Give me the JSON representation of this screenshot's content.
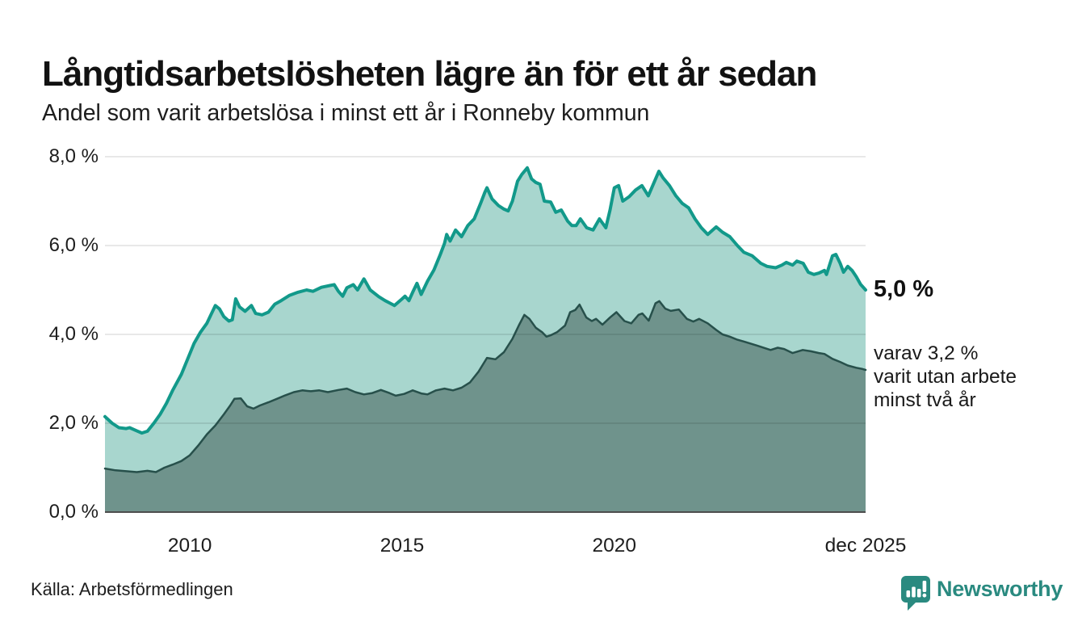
{
  "header": {
    "title": "Långtidsarbetslösheten lägre än för ett år sedan",
    "subtitle": "Andel som varit arbetslösa i minst ett år i Ronneby kommun"
  },
  "annotations": {
    "latest_total": "5,0 %",
    "two_year_note": "varav 3,2 %\nvarit utan arbete\nminst två år"
  },
  "source": {
    "label": "Källa: Arbetsförmedlingen"
  },
  "branding": {
    "name": "Newsworthy",
    "color": "#2a8a80"
  },
  "chart_data": {
    "type": "area",
    "title": "Långtidsarbetslösheten lägre än för ett år sedan",
    "subtitle": "Andel som varit arbetslösa i minst ett år i Ronneby kommun",
    "x_domain": [
      2008,
      2025.92
    ],
    "ylim": [
      0,
      8
    ],
    "grid": true,
    "grid_color": "rgba(0,0,0,0.12)",
    "baseline_color": "#4d4d4d",
    "y_ticks": [
      {
        "value": 8,
        "label": "8,0 %"
      },
      {
        "value": 6,
        "label": "6,0 %"
      },
      {
        "value": 4,
        "label": "4,0 %"
      },
      {
        "value": 2,
        "label": "2,0 %"
      },
      {
        "value": 0,
        "label": "0,0 %"
      }
    ],
    "x_ticks": [
      {
        "value": 2010,
        "label": "2010"
      },
      {
        "value": 2015,
        "label": "2015"
      },
      {
        "value": 2020,
        "label": "2020"
      },
      {
        "value": 2025.92,
        "label": "dec 2025"
      }
    ],
    "series": [
      {
        "name": "Andel arbetslösa minst ett år",
        "line_color": "#12998a",
        "fill_color": "#a8d6ce",
        "line_width": 4,
        "latest_value": 5.0,
        "latest_label": "5,0 %",
        "points": [
          [
            2008.0,
            2.15
          ],
          [
            2008.17,
            2.0
          ],
          [
            2008.33,
            1.9
          ],
          [
            2008.5,
            1.88
          ],
          [
            2008.58,
            1.9
          ],
          [
            2008.75,
            1.83
          ],
          [
            2008.87,
            1.78
          ],
          [
            2009.0,
            1.82
          ],
          [
            2009.15,
            2.0
          ],
          [
            2009.3,
            2.2
          ],
          [
            2009.45,
            2.45
          ],
          [
            2009.6,
            2.75
          ],
          [
            2009.8,
            3.1
          ],
          [
            2009.95,
            3.45
          ],
          [
            2010.1,
            3.8
          ],
          [
            2010.25,
            4.05
          ],
          [
            2010.4,
            4.25
          ],
          [
            2010.5,
            4.45
          ],
          [
            2010.6,
            4.65
          ],
          [
            2010.7,
            4.57
          ],
          [
            2010.8,
            4.4
          ],
          [
            2010.92,
            4.3
          ],
          [
            2011.0,
            4.33
          ],
          [
            2011.08,
            4.8
          ],
          [
            2011.17,
            4.62
          ],
          [
            2011.3,
            4.52
          ],
          [
            2011.45,
            4.65
          ],
          [
            2011.55,
            4.47
          ],
          [
            2011.7,
            4.44
          ],
          [
            2011.85,
            4.5
          ],
          [
            2012.0,
            4.68
          ],
          [
            2012.15,
            4.76
          ],
          [
            2012.35,
            4.88
          ],
          [
            2012.55,
            4.95
          ],
          [
            2012.75,
            5.0
          ],
          [
            2012.9,
            4.97
          ],
          [
            2013.1,
            5.06
          ],
          [
            2013.3,
            5.1
          ],
          [
            2013.4,
            5.12
          ],
          [
            2013.5,
            4.97
          ],
          [
            2013.6,
            4.86
          ],
          [
            2013.7,
            5.05
          ],
          [
            2013.85,
            5.12
          ],
          [
            2013.95,
            5.0
          ],
          [
            2014.1,
            5.25
          ],
          [
            2014.25,
            5.0
          ],
          [
            2014.45,
            4.85
          ],
          [
            2014.6,
            4.76
          ],
          [
            2014.72,
            4.7
          ],
          [
            2014.82,
            4.65
          ],
          [
            2015.0,
            4.8
          ],
          [
            2015.07,
            4.86
          ],
          [
            2015.16,
            4.76
          ],
          [
            2015.25,
            4.95
          ],
          [
            2015.35,
            5.15
          ],
          [
            2015.45,
            4.9
          ],
          [
            2015.6,
            5.2
          ],
          [
            2015.75,
            5.45
          ],
          [
            2015.9,
            5.8
          ],
          [
            2016.0,
            6.05
          ],
          [
            2016.05,
            6.25
          ],
          [
            2016.13,
            6.1
          ],
          [
            2016.26,
            6.35
          ],
          [
            2016.4,
            6.2
          ],
          [
            2016.55,
            6.45
          ],
          [
            2016.7,
            6.6
          ],
          [
            2016.85,
            6.95
          ],
          [
            2016.95,
            7.2
          ],
          [
            2017.0,
            7.3
          ],
          [
            2017.12,
            7.05
          ],
          [
            2017.27,
            6.9
          ],
          [
            2017.4,
            6.82
          ],
          [
            2017.5,
            6.78
          ],
          [
            2017.6,
            7.0
          ],
          [
            2017.72,
            7.45
          ],
          [
            2017.82,
            7.6
          ],
          [
            2017.95,
            7.75
          ],
          [
            2018.05,
            7.5
          ],
          [
            2018.15,
            7.42
          ],
          [
            2018.25,
            7.38
          ],
          [
            2018.35,
            7.0
          ],
          [
            2018.5,
            6.98
          ],
          [
            2018.62,
            6.75
          ],
          [
            2018.75,
            6.8
          ],
          [
            2018.9,
            6.55
          ],
          [
            2019.0,
            6.45
          ],
          [
            2019.1,
            6.45
          ],
          [
            2019.2,
            6.6
          ],
          [
            2019.35,
            6.4
          ],
          [
            2019.5,
            6.35
          ],
          [
            2019.65,
            6.6
          ],
          [
            2019.8,
            6.4
          ],
          [
            2019.9,
            6.8
          ],
          [
            2020.0,
            7.3
          ],
          [
            2020.1,
            7.35
          ],
          [
            2020.2,
            7.0
          ],
          [
            2020.35,
            7.1
          ],
          [
            2020.5,
            7.25
          ],
          [
            2020.65,
            7.35
          ],
          [
            2020.8,
            7.12
          ],
          [
            2020.95,
            7.45
          ],
          [
            2021.05,
            7.67
          ],
          [
            2021.15,
            7.52
          ],
          [
            2021.3,
            7.35
          ],
          [
            2021.45,
            7.12
          ],
          [
            2021.6,
            6.95
          ],
          [
            2021.75,
            6.85
          ],
          [
            2021.9,
            6.6
          ],
          [
            2022.05,
            6.4
          ],
          [
            2022.2,
            6.25
          ],
          [
            2022.4,
            6.42
          ],
          [
            2022.55,
            6.3
          ],
          [
            2022.72,
            6.2
          ],
          [
            2022.9,
            6.0
          ],
          [
            2023.05,
            5.85
          ],
          [
            2023.25,
            5.77
          ],
          [
            2023.45,
            5.6
          ],
          [
            2023.6,
            5.53
          ],
          [
            2023.8,
            5.5
          ],
          [
            2023.95,
            5.56
          ],
          [
            2024.05,
            5.62
          ],
          [
            2024.2,
            5.56
          ],
          [
            2024.3,
            5.65
          ],
          [
            2024.45,
            5.6
          ],
          [
            2024.57,
            5.4
          ],
          [
            2024.7,
            5.35
          ],
          [
            2024.82,
            5.38
          ],
          [
            2024.95,
            5.44
          ],
          [
            2025.0,
            5.35
          ],
          [
            2025.14,
            5.77
          ],
          [
            2025.22,
            5.8
          ],
          [
            2025.32,
            5.6
          ],
          [
            2025.4,
            5.4
          ],
          [
            2025.5,
            5.53
          ],
          [
            2025.6,
            5.44
          ],
          [
            2025.7,
            5.3
          ],
          [
            2025.8,
            5.13
          ],
          [
            2025.92,
            5.0
          ]
        ]
      },
      {
        "name": "varav utan arbete minst två år",
        "line_color": "#27504b",
        "fill_color": "#6f938c",
        "line_width": 2.5,
        "latest_value": 3.2,
        "latest_label": "3,2 %",
        "points": [
          [
            2008.0,
            0.98
          ],
          [
            2008.25,
            0.94
          ],
          [
            2008.5,
            0.92
          ],
          [
            2008.75,
            0.9
          ],
          [
            2009.0,
            0.93
          ],
          [
            2009.2,
            0.9
          ],
          [
            2009.4,
            1.0
          ],
          [
            2009.6,
            1.07
          ],
          [
            2009.8,
            1.15
          ],
          [
            2010.0,
            1.28
          ],
          [
            2010.2,
            1.5
          ],
          [
            2010.4,
            1.75
          ],
          [
            2010.6,
            1.95
          ],
          [
            2010.8,
            2.2
          ],
          [
            2010.95,
            2.4
          ],
          [
            2011.05,
            2.55
          ],
          [
            2011.2,
            2.56
          ],
          [
            2011.35,
            2.38
          ],
          [
            2011.5,
            2.33
          ],
          [
            2011.65,
            2.4
          ],
          [
            2011.85,
            2.47
          ],
          [
            2012.05,
            2.55
          ],
          [
            2012.25,
            2.63
          ],
          [
            2012.45,
            2.7
          ],
          [
            2012.65,
            2.74
          ],
          [
            2012.85,
            2.72
          ],
          [
            2013.05,
            2.74
          ],
          [
            2013.25,
            2.7
          ],
          [
            2013.5,
            2.75
          ],
          [
            2013.7,
            2.78
          ],
          [
            2013.9,
            2.7
          ],
          [
            2014.1,
            2.65
          ],
          [
            2014.3,
            2.68
          ],
          [
            2014.5,
            2.75
          ],
          [
            2014.7,
            2.68
          ],
          [
            2014.85,
            2.62
          ],
          [
            2015.05,
            2.66
          ],
          [
            2015.25,
            2.74
          ],
          [
            2015.45,
            2.67
          ],
          [
            2015.6,
            2.65
          ],
          [
            2015.8,
            2.74
          ],
          [
            2016.0,
            2.78
          ],
          [
            2016.2,
            2.74
          ],
          [
            2016.4,
            2.8
          ],
          [
            2016.6,
            2.92
          ],
          [
            2016.8,
            3.16
          ],
          [
            2017.0,
            3.47
          ],
          [
            2017.2,
            3.44
          ],
          [
            2017.4,
            3.6
          ],
          [
            2017.6,
            3.9
          ],
          [
            2017.75,
            4.2
          ],
          [
            2017.88,
            4.44
          ],
          [
            2018.0,
            4.35
          ],
          [
            2018.15,
            4.15
          ],
          [
            2018.3,
            4.05
          ],
          [
            2018.4,
            3.95
          ],
          [
            2018.5,
            3.98
          ],
          [
            2018.65,
            4.05
          ],
          [
            2018.84,
            4.2
          ],
          [
            2018.96,
            4.5
          ],
          [
            2019.08,
            4.55
          ],
          [
            2019.18,
            4.67
          ],
          [
            2019.34,
            4.38
          ],
          [
            2019.47,
            4.3
          ],
          [
            2019.57,
            4.35
          ],
          [
            2019.72,
            4.22
          ],
          [
            2019.9,
            4.38
          ],
          [
            2020.05,
            4.5
          ],
          [
            2020.24,
            4.3
          ],
          [
            2020.4,
            4.25
          ],
          [
            2020.57,
            4.44
          ],
          [
            2020.66,
            4.47
          ],
          [
            2020.81,
            4.31
          ],
          [
            2020.97,
            4.7
          ],
          [
            2021.06,
            4.75
          ],
          [
            2021.2,
            4.58
          ],
          [
            2021.33,
            4.53
          ],
          [
            2021.52,
            4.56
          ],
          [
            2021.71,
            4.35
          ],
          [
            2021.86,
            4.29
          ],
          [
            2022.0,
            4.35
          ],
          [
            2022.2,
            4.25
          ],
          [
            2022.4,
            4.1
          ],
          [
            2022.55,
            4.0
          ],
          [
            2022.72,
            3.95
          ],
          [
            2022.9,
            3.88
          ],
          [
            2023.05,
            3.84
          ],
          [
            2023.36,
            3.75
          ],
          [
            2023.68,
            3.65
          ],
          [
            2023.85,
            3.7
          ],
          [
            2024.0,
            3.67
          ],
          [
            2024.2,
            3.58
          ],
          [
            2024.44,
            3.65
          ],
          [
            2024.63,
            3.62
          ],
          [
            2024.82,
            3.58
          ],
          [
            2024.95,
            3.56
          ],
          [
            2025.14,
            3.45
          ],
          [
            2025.32,
            3.38
          ],
          [
            2025.5,
            3.3
          ],
          [
            2025.7,
            3.25
          ],
          [
            2025.85,
            3.22
          ],
          [
            2025.92,
            3.2
          ]
        ]
      }
    ]
  }
}
